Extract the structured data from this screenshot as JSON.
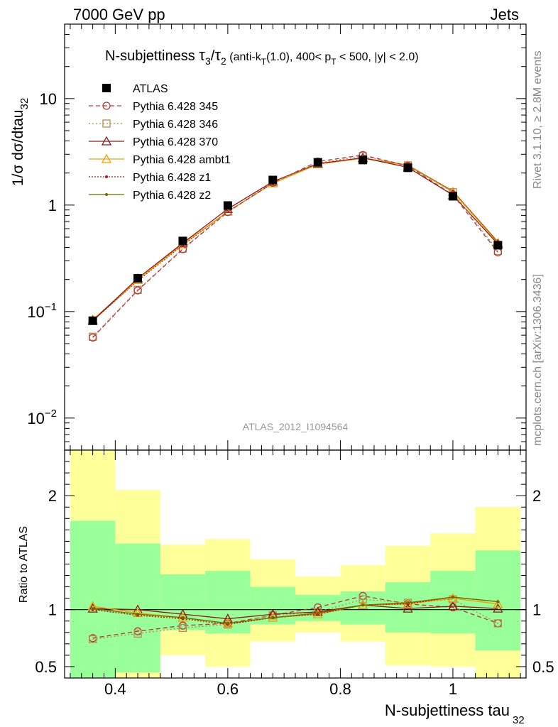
{
  "header": {
    "left": "7000 GeV pp",
    "right": "Jets",
    "side_top": "Rivet 3.1.10, ≥ 2.8M events",
    "side_bottom": "mcplots.cern.ch [arXiv:1306.3436]",
    "analysis_id": "ATLAS_2012_I1094564"
  },
  "title_parts": {
    "a": "N-subjettiness ",
    "tau": "τ",
    "sub3": "3",
    "slash": "/",
    "sub2": "2",
    "b": " (anti-k",
    "subT": "T",
    "c": "(1.0), 400< p",
    "subT2": "T",
    "d": " < 500, |y| < 2.0)"
  },
  "ylabel_parts": {
    "main": "1/σ dσ/dtau",
    "sub": "32"
  },
  "ratio_ylabel": "Ratio to ATLAS",
  "xlabel_parts": {
    "main": "N-subjettiness tau",
    "sub": "32"
  },
  "chart_data": [
    {
      "type": "line",
      "panel": "main",
      "x": [
        0.36,
        0.44,
        0.52,
        0.6,
        0.68,
        0.76,
        0.84,
        0.92,
        1.0,
        1.08
      ],
      "xlim": [
        0.31,
        1.13
      ],
      "ylim": [
        0.005,
        50
      ],
      "log_y": true,
      "y_ticks": [
        {
          "value": 0.01,
          "base": "10",
          "exp": "−2"
        },
        {
          "value": 0.1,
          "base": "10",
          "exp": "−1"
        },
        {
          "value": 1,
          "base": "1",
          "exp": ""
        },
        {
          "value": 10,
          "base": "10",
          "exp": ""
        }
      ],
      "x_ticks": [
        "0.4",
        "0.6",
        "0.8",
        "1"
      ],
      "x_tick_values": [
        0.4,
        0.6,
        0.8,
        1.0
      ],
      "series": [
        {
          "name": "ATLAS",
          "color": "#000000",
          "marker": "square",
          "dash": "",
          "values": [
            0.082,
            0.205,
            0.46,
            0.99,
            1.72,
            2.52,
            2.65,
            2.24,
            1.21,
            0.42
          ]
        },
        {
          "name": "Pythia 6.428 345",
          "color": "#b23a3a",
          "marker": "circle",
          "dash": "6,4",
          "values": [
            0.057,
            0.158,
            0.385,
            0.86,
            1.62,
            2.56,
            2.95,
            2.34,
            1.25,
            0.36
          ]
        },
        {
          "name": "Pythia 6.428 346",
          "color": "#b88a4e",
          "marker": "square-open",
          "dash": "2,3",
          "values": [
            0.058,
            0.16,
            0.39,
            0.87,
            1.64,
            2.48,
            2.88,
            2.36,
            1.32,
            0.37
          ]
        },
        {
          "name": "Pythia 6.428 370",
          "color": "#8b1a1a",
          "marker": "triangle",
          "dash": "",
          "values": [
            0.082,
            0.205,
            0.44,
            0.92,
            1.66,
            2.45,
            2.78,
            2.26,
            1.24,
            0.43
          ]
        },
        {
          "name": "Pythia 6.428 ambt1",
          "color": "#f0a000",
          "marker": "triangle",
          "dash": "",
          "values": [
            0.084,
            0.198,
            0.43,
            0.87,
            1.6,
            2.42,
            2.75,
            2.35,
            1.33,
            0.44
          ]
        },
        {
          "name": "Pythia 6.428 z1",
          "color": "#c0141e",
          "marker": "dot",
          "dash": "2,2",
          "values": [
            0.082,
            0.195,
            0.42,
            0.87,
            1.6,
            2.42,
            2.75,
            2.36,
            1.35,
            0.45
          ]
        },
        {
          "name": "Pythia 6.428 z2",
          "color": "#6b6b00",
          "marker": "dot",
          "dash": "",
          "values": [
            0.082,
            0.198,
            0.43,
            0.87,
            1.6,
            2.43,
            2.76,
            2.37,
            1.35,
            0.45
          ]
        }
      ]
    },
    {
      "type": "line",
      "panel": "ratio",
      "x": [
        0.36,
        0.44,
        0.52,
        0.6,
        0.68,
        0.76,
        0.84,
        0.92,
        1.0,
        1.08
      ],
      "bin_edges": [
        0.32,
        0.4,
        0.48,
        0.56,
        0.64,
        0.72,
        0.8,
        0.88,
        0.96,
        1.04,
        1.12
      ],
      "xlim": [
        0.31,
        1.13
      ],
      "ylim": [
        0.4,
        2.4
      ],
      "y_ticks": [
        "0.5",
        "1",
        "2"
      ],
      "y_tick_values": [
        0.5,
        1.0,
        2.0
      ],
      "x_ticks": [
        "0.4",
        "0.6",
        "0.8",
        "1"
      ],
      "x_tick_values": [
        0.4,
        0.6,
        0.8,
        1.0
      ],
      "band_yellow": {
        "lo": [
          0.35,
          0.35,
          0.6,
          0.5,
          0.72,
          0.8,
          0.72,
          0.51,
          0.5,
          0.35
        ],
        "hi": [
          3.0,
          2.05,
          1.57,
          1.62,
          1.44,
          1.29,
          1.39,
          1.56,
          1.67,
          1.9
        ]
      },
      "band_green": {
        "lo": [
          0.35,
          0.45,
          0.82,
          0.79,
          0.87,
          0.9,
          0.87,
          0.8,
          0.79,
          0.64
        ],
        "hi": [
          1.78,
          1.58,
          1.31,
          1.34,
          1.2,
          1.13,
          1.16,
          1.24,
          1.34,
          1.52
        ]
      },
      "series": [
        {
          "name": "Pythia 6.428 345",
          "color": "#b23a3a",
          "marker": "circle",
          "dash": "6,4",
          "values": [
            0.75,
            0.81,
            0.86,
            0.88,
            0.95,
            1.02,
            1.12,
            1.05,
            1.02,
            0.88
          ]
        },
        {
          "name": "Pythia 6.428 346",
          "color": "#b88a4e",
          "marker": "square-open",
          "dash": "2,3",
          "values": [
            0.74,
            0.79,
            0.84,
            0.87,
            0.95,
            0.98,
            1.09,
            1.06,
            1.09,
            0.88
          ]
        },
        {
          "name": "Pythia 6.428 370",
          "color": "#8b1a1a",
          "marker": "triangle",
          "dash": "",
          "values": [
            1.01,
            1.0,
            0.96,
            0.92,
            0.96,
            0.98,
            1.04,
            1.01,
            1.03,
            1.01
          ]
        },
        {
          "name": "Pythia 6.428 ambt1",
          "color": "#f0a000",
          "marker": "triangle",
          "dash": "",
          "values": [
            1.03,
            0.97,
            0.93,
            0.88,
            0.93,
            0.96,
            1.04,
            1.05,
            1.1,
            1.05
          ]
        },
        {
          "name": "Pythia 6.428 z1",
          "color": "#c0141e",
          "marker": "dot",
          "dash": "2,2",
          "values": [
            1.0,
            0.95,
            0.92,
            0.87,
            0.93,
            0.96,
            1.04,
            1.05,
            1.11,
            1.07
          ]
        },
        {
          "name": "Pythia 6.428 z2",
          "color": "#6b6b00",
          "marker": "dot",
          "dash": "",
          "values": [
            1.01,
            0.96,
            0.93,
            0.88,
            0.93,
            0.97,
            1.04,
            1.06,
            1.11,
            1.07
          ]
        }
      ]
    }
  ]
}
